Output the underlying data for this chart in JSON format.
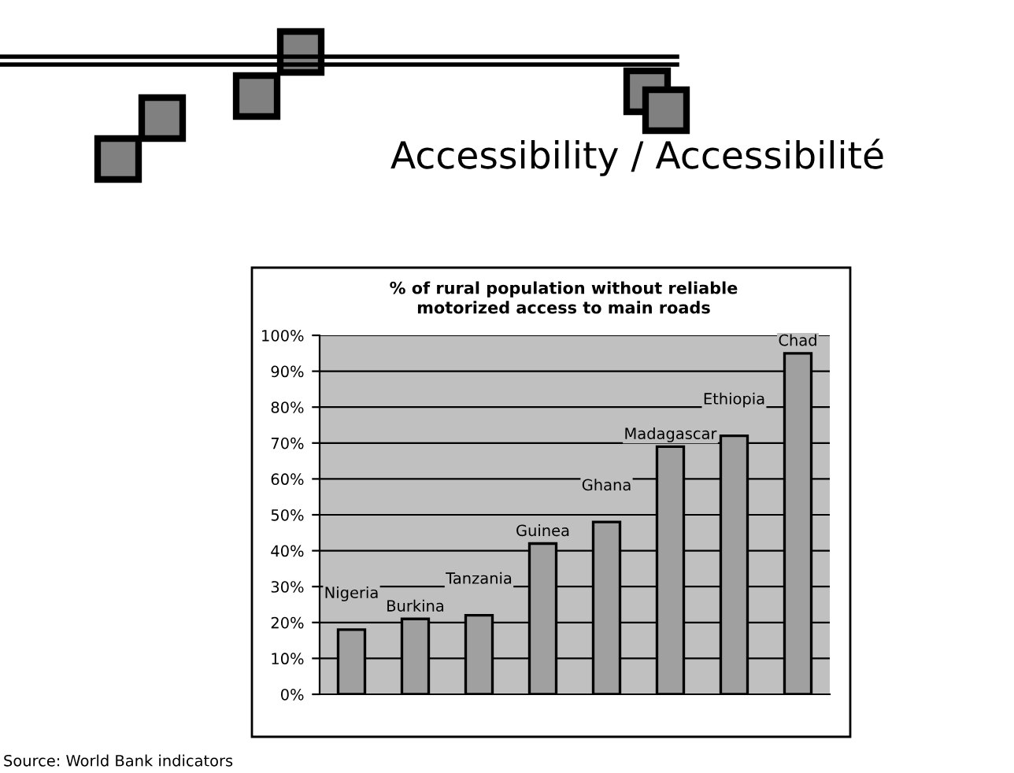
{
  "chart_data": {
    "type": "bar",
    "title": "Accessibility / Accessibilité",
    "subtitle": "% of rural population without reliable motorized access to main roads",
    "categories": [
      "Nigeria",
      "Burkina",
      "Tanzania",
      "Guinea",
      "Ghana",
      "Madagascar",
      "Ethiopia",
      "Chad"
    ],
    "values": [
      18,
      21,
      22,
      42,
      48,
      69,
      72,
      95
    ],
    "color": "#a0a0a0",
    "ylim": [
      0,
      100
    ],
    "yticks": [
      {
        "value": 0,
        "label": "0%"
      },
      {
        "value": 10,
        "label": "10%"
      },
      {
        "value": 20,
        "label": "20%"
      },
      {
        "value": 30,
        "label": "30%"
      },
      {
        "value": 40,
        "label": "40%"
      },
      {
        "value": 50,
        "label": "50%"
      },
      {
        "value": 60,
        "label": "60%"
      },
      {
        "value": 70,
        "label": "70%"
      },
      {
        "value": 80,
        "label": "80%"
      },
      {
        "value": 90,
        "label": "90%"
      },
      {
        "value": 100,
        "label": "100%"
      }
    ],
    "grid": "y",
    "tick_labels": "y",
    "annotations": [
      "Source: World Bank indicators"
    ]
  }
}
